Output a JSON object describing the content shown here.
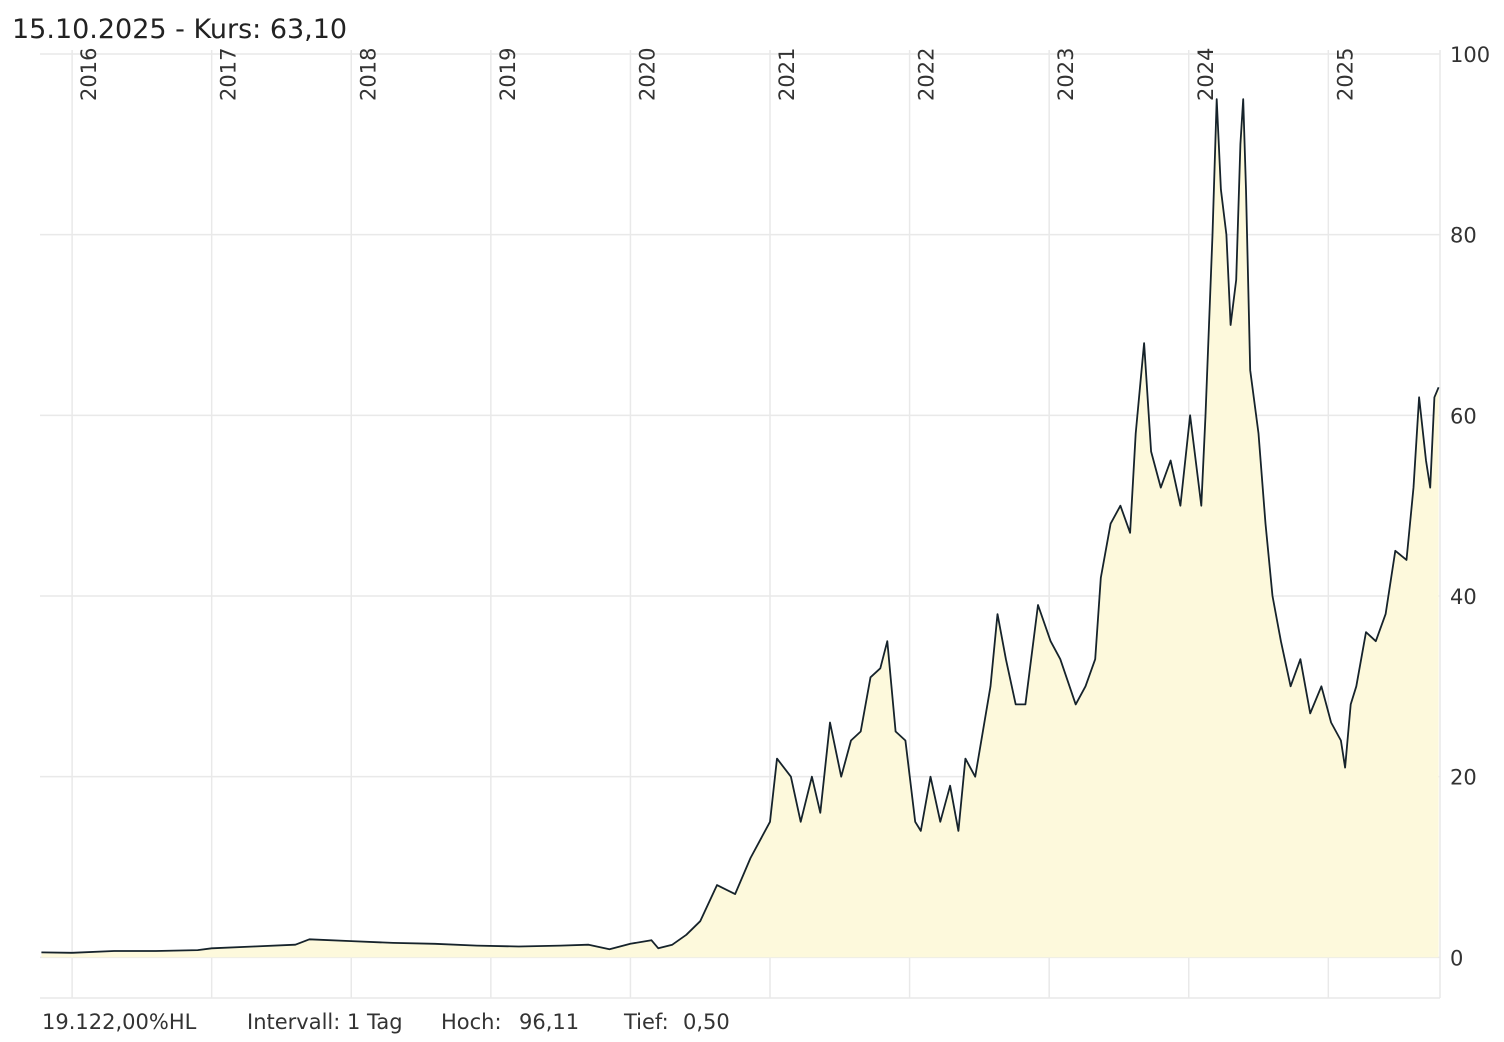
{
  "chart_data": {
    "type": "area",
    "title": "15.10.2025  - Kurs: 63,10",
    "x": [
      2015.78,
      2016.0,
      2016.3,
      2016.6,
      2016.9,
      2017.0,
      2017.3,
      2017.6,
      2017.7,
      2018.0,
      2018.3,
      2018.6,
      2018.9,
      2019.2,
      2019.5,
      2019.7,
      2019.85,
      2020.0,
      2020.15,
      2020.2,
      2020.3,
      2020.4,
      2020.5,
      2020.62,
      2020.75,
      2020.86,
      2021.0,
      2021.05,
      2021.15,
      2021.22,
      2021.3,
      2021.36,
      2021.43,
      2021.51,
      2021.58,
      2021.65,
      2021.72,
      2021.79,
      2021.84,
      2021.9,
      2021.97,
      2022.04,
      2022.08,
      2022.15,
      2022.22,
      2022.29,
      2022.35,
      2022.4,
      2022.47,
      2022.58,
      2022.63,
      2022.69,
      2022.76,
      2022.83,
      2022.92,
      2023.01,
      2023.08,
      2023.19,
      2023.26,
      2023.33,
      2023.37,
      2023.44,
      2023.51,
      2023.58,
      2023.62,
      2023.68,
      2023.73,
      2023.8,
      2023.87,
      2023.94,
      2024.01,
      2024.09,
      2024.12,
      2024.17,
      2024.2,
      2024.23,
      2024.27,
      2024.3,
      2024.34,
      2024.37,
      2024.39,
      2024.41,
      2024.44,
      2024.5,
      2024.55,
      2024.6,
      2024.66,
      2024.73,
      2024.8,
      2024.87,
      2024.95,
      2025.02,
      2025.09,
      2025.12,
      2025.16,
      2025.2,
      2025.27,
      2025.34,
      2025.41,
      2025.48,
      2025.56,
      2025.61,
      2025.65,
      2025.7,
      2025.73,
      2025.76,
      2025.79
    ],
    "values": [
      0.55,
      0.5,
      0.7,
      0.7,
      0.8,
      1.0,
      1.2,
      1.4,
      2.0,
      1.8,
      1.6,
      1.5,
      1.3,
      1.2,
      1.3,
      1.4,
      0.9,
      1.5,
      1.9,
      1.0,
      1.4,
      2.5,
      4,
      8,
      7,
      11,
      15,
      22,
      20,
      15,
      20,
      16,
      26,
      20,
      24,
      25,
      31,
      32,
      35,
      25,
      24,
      15,
      14,
      20,
      15,
      19,
      14,
      22,
      20,
      30,
      38,
      33,
      28,
      28,
      39,
      35,
      33,
      28,
      30,
      33,
      42,
      48,
      50,
      47,
      58,
      68,
      56,
      52,
      55,
      50,
      60,
      50,
      60,
      80,
      95,
      85,
      80,
      70,
      75,
      90,
      95,
      85,
      65,
      58,
      48,
      40,
      35,
      30,
      33,
      27,
      30,
      26,
      24,
      21,
      28,
      30,
      36,
      35,
      38,
      45,
      44,
      52,
      62,
      55,
      52,
      62,
      63.1
    ],
    "color": "#16232b",
    "fill": "#fdf9dc",
    "xlim": [
      2015.77,
      2025.8
    ],
    "xticks": [
      2016,
      2017,
      2018,
      2019,
      2020,
      2021,
      2022,
      2023,
      2024,
      2025
    ],
    "ylim": [
      -4.5,
      100
    ],
    "yticks": [
      0,
      20,
      40,
      60,
      80,
      100
    ],
    "grid": true,
    "footer": {
      "change": "19.122,00%HL",
      "interval": "Intervall: 1 Tag",
      "high_label": "Hoch:",
      "high": "96,11",
      "low_label": "Tief:",
      "low": "0,50"
    }
  }
}
